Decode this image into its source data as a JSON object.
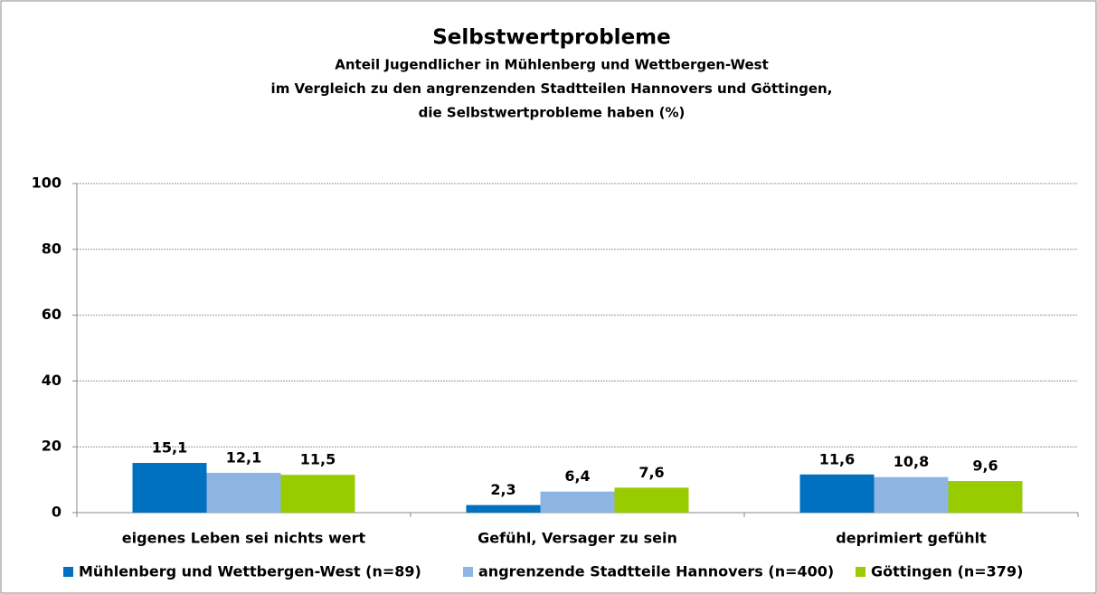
{
  "chart_data": {
    "type": "bar",
    "title": "Selbstwertprobleme",
    "subtitle": [
      "Anteil Jugendlicher in Mühlenberg und Wettbergen-West",
      "im Vergleich zu den angrenzenden Stadtteilen Hannovers und Göttingen,",
      "die Selbstwertprobleme haben (%)"
    ],
    "categories": [
      "eigenes Leben sei nichts wert",
      "Gefühl, Versager zu sein",
      "deprimiert gefühlt"
    ],
    "series": [
      {
        "name": "Mühlenberg und Wettbergen-West (n=89)",
        "color": "#0070c0",
        "values": [
          15.1,
          2.3,
          11.6
        ],
        "value_labels": [
          "15,1",
          "2,3",
          "11,6"
        ]
      },
      {
        "name": "angrenzende Stadtteile Hannovers (n=400)",
        "color": "#8db4e2",
        "values": [
          12.1,
          6.4,
          10.8
        ],
        "value_labels": [
          "12,1",
          "6,4",
          "10,8"
        ]
      },
      {
        "name": "Göttingen (n=379)",
        "color": "#99cc00",
        "values": [
          11.5,
          7.6,
          9.6
        ],
        "value_labels": [
          "11,5",
          "7,6",
          "9,6"
        ]
      }
    ],
    "ylim": [
      0,
      100
    ],
    "yticks": [
      0,
      20,
      40,
      60,
      80,
      100
    ],
    "grid": true,
    "legend": "bottom"
  }
}
